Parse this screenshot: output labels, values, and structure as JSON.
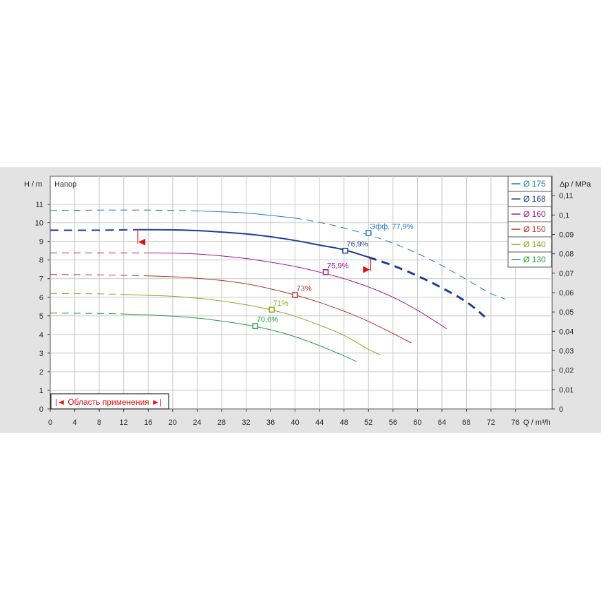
{
  "chart_data": {
    "type": "line",
    "title": "Напор",
    "xlabel": "Q / m³/h",
    "ylabel": "H / m",
    "y2label": "Δp / MPa",
    "xlim": [
      0,
      82
    ],
    "ylim": [
      0,
      12.5
    ],
    "y2lim": [
      0,
      0.12
    ],
    "x_ticks": [
      0,
      4,
      8,
      12,
      16,
      20,
      24,
      28,
      32,
      36,
      40,
      44,
      48,
      52,
      56,
      60,
      64,
      68,
      72,
      76
    ],
    "y_ticks": [
      0,
      1,
      2,
      3,
      4,
      5,
      6,
      7,
      8,
      9,
      10,
      11
    ],
    "y2_ticks": [
      0,
      0.01,
      0.02,
      0.03,
      0.04,
      0.05,
      0.06,
      0.07,
      0.08,
      0.09,
      0.1,
      0.11
    ],
    "y2_tick_labels": [
      "0",
      "0,01",
      "0,02",
      "0,03",
      "0,04",
      "0,05",
      "0,06",
      "0,07",
      "0,08",
      "0,09",
      "0,1",
      "0,11"
    ],
    "grid": true,
    "legend_position": "top-right",
    "series": [
      {
        "name": "Ø 175",
        "color": "#1e7bbf",
        "width": 1,
        "x": [
          0,
          8,
          16,
          24,
          32,
          40,
          44,
          48,
          52,
          56,
          60,
          64,
          68,
          72,
          74.4
        ],
        "y": [
          10.65,
          10.68,
          10.68,
          10.64,
          10.52,
          10.25,
          10.02,
          9.72,
          9.35,
          8.9,
          8.35,
          7.7,
          6.95,
          6.2,
          5.9
        ],
        "solid_from": 24,
        "solid_to": 40,
        "eff_point": {
          "x": 52,
          "y": 9.45,
          "label": "Эфф.  77,9%"
        }
      },
      {
        "name": "Ø 168",
        "color": "#1a3c9c",
        "width": 2,
        "x": [
          0,
          8,
          14.3,
          20,
          24,
          28,
          32,
          36,
          40,
          44,
          48,
          52,
          56,
          60,
          64,
          68,
          71
        ],
        "y": [
          9.6,
          9.6,
          9.63,
          9.62,
          9.58,
          9.5,
          9.4,
          9.25,
          9.05,
          8.8,
          8.55,
          8.15,
          7.7,
          7.15,
          6.5,
          5.75,
          4.95
        ],
        "solid_from": 14.3,
        "solid_to": 52,
        "eff_point": {
          "x": 48.2,
          "y": 8.5,
          "label": "76,9%"
        }
      },
      {
        "name": "Ø 160",
        "color": "#a3148c",
        "width": 1,
        "x": [
          0,
          8,
          16,
          20,
          24,
          28,
          32,
          36,
          40,
          44,
          48,
          52,
          56,
          60,
          64.8
        ],
        "y": [
          8.38,
          8.38,
          8.38,
          8.37,
          8.32,
          8.22,
          8.08,
          7.88,
          7.65,
          7.35,
          7.0,
          6.55,
          6.0,
          5.3,
          4.3
        ],
        "solid_from": 16,
        "solid_to": 64.8,
        "eff_point": {
          "x": 45,
          "y": 7.35,
          "label": "75,9%"
        }
      },
      {
        "name": "Ø 150",
        "color": "#b83020",
        "width": 1,
        "x": [
          0,
          8,
          16,
          20,
          24,
          28,
          32,
          36,
          40,
          44,
          48,
          52,
          56,
          59
        ],
        "y": [
          7.22,
          7.2,
          7.15,
          7.1,
          7.02,
          6.9,
          6.72,
          6.45,
          6.12,
          5.72,
          5.25,
          4.7,
          4.05,
          3.55
        ],
        "solid_from": 16,
        "solid_to": 59,
        "eff_point": {
          "x": 40,
          "y": 6.12,
          "label": "73%"
        }
      },
      {
        "name": "Ø 140",
        "color": "#8ba81a",
        "width": 1,
        "x": [
          0,
          8,
          12,
          16,
          20,
          24,
          28,
          32,
          36,
          40,
          44,
          48,
          52,
          54
        ],
        "y": [
          6.2,
          6.18,
          6.15,
          6.1,
          6.05,
          5.95,
          5.8,
          5.6,
          5.33,
          4.98,
          4.5,
          3.95,
          3.2,
          2.9
        ],
        "solid_from": 12,
        "solid_to": 54,
        "eff_point": {
          "x": 36.2,
          "y": 5.33,
          "label": "71%"
        }
      },
      {
        "name": "Ø 130",
        "color": "#1f9a3a",
        "width": 1,
        "x": [
          0,
          8,
          12,
          16,
          20,
          24,
          28,
          32,
          36,
          40,
          44,
          48,
          50
        ],
        "y": [
          5.15,
          5.13,
          5.1,
          5.05,
          4.98,
          4.88,
          4.72,
          4.52,
          4.25,
          3.88,
          3.4,
          2.85,
          2.55
        ],
        "solid_from": 12,
        "solid_to": 50,
        "eff_point": {
          "x": 33.5,
          "y": 4.45,
          "label": "70,6%"
        }
      }
    ],
    "application_area": {
      "label": "|◄ Область применения ►|",
      "left_limit": {
        "x": 14.3,
        "y": 9.63
      },
      "right_limit": {
        "x": 52,
        "y": 8.15
      }
    }
  }
}
